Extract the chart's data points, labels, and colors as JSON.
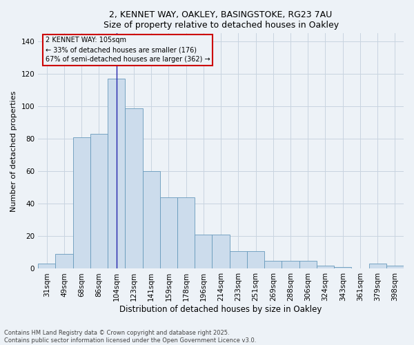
{
  "title_line1": "2, KENNET WAY, OAKLEY, BASINGSTOKE, RG23 7AU",
  "title_line2": "Size of property relative to detached houses in Oakley",
  "xlabel": "Distribution of detached houses by size in Oakley",
  "ylabel": "Number of detached properties",
  "bar_color": "#ccdcec",
  "bar_edge_color": "#6699bb",
  "highlight_line_color": "#2222aa",
  "annotation_box_color": "#cc0000",
  "categories": [
    "31sqm",
    "49sqm",
    "68sqm",
    "86sqm",
    "104sqm",
    "123sqm",
    "141sqm",
    "159sqm",
    "178sqm",
    "196sqm",
    "214sqm",
    "233sqm",
    "251sqm",
    "269sqm",
    "288sqm",
    "306sqm",
    "324sqm",
    "343sqm",
    "361sqm",
    "379sqm",
    "398sqm"
  ],
  "values": [
    3,
    9,
    81,
    83,
    117,
    99,
    60,
    44,
    44,
    21,
    21,
    11,
    11,
    5,
    5,
    5,
    2,
    1,
    0,
    3,
    2
  ],
  "highlight_index": 4,
  "annotation_title": "2 KENNET WAY: 105sqm",
  "annotation_line2": "← 33% of detached houses are smaller (176)",
  "annotation_line3": "67% of semi-detached houses are larger (362) →",
  "ylim": [
    0,
    145
  ],
  "yticks": [
    0,
    20,
    40,
    60,
    80,
    100,
    120,
    140
  ],
  "footer_line1": "Contains HM Land Registry data © Crown copyright and database right 2025.",
  "footer_line2": "Contains public sector information licensed under the Open Government Licence v3.0.",
  "bg_color": "#edf2f7"
}
